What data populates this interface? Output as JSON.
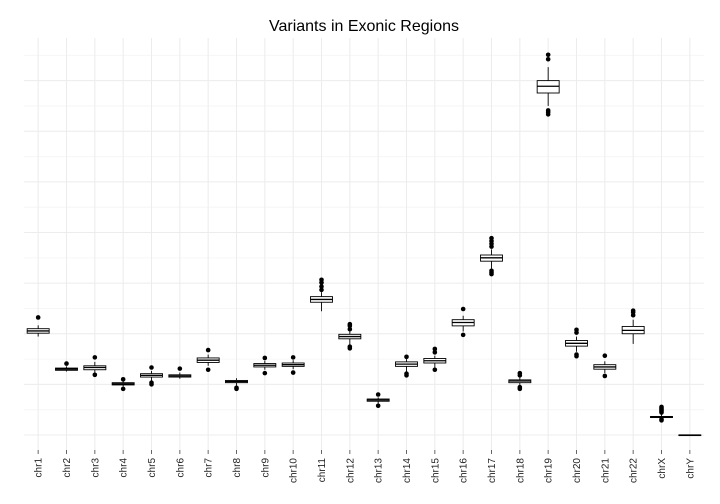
{
  "chart_data": {
    "type": "boxplot",
    "title": "Variants in Exonic Regions",
    "xlabel": "",
    "ylabel": "",
    "ylim": [
      0,
      720
    ],
    "y_tick_labels_shown": false,
    "grid": true,
    "categories": [
      "chr1",
      "chr2",
      "chr3",
      "chr4",
      "chr5",
      "chr6",
      "chr7",
      "chr8",
      "chr9",
      "chr10",
      "chr11",
      "chr12",
      "chr13",
      "chr14",
      "chr15",
      "chr16",
      "chr17",
      "chr18",
      "chr19",
      "chr20",
      "chr21",
      "chr22",
      "chrX",
      "chrY"
    ],
    "boxes": [
      {
        "category": "chr1",
        "q1": 181,
        "median": 185,
        "q3": 189,
        "lo": 175,
        "hi": 195,
        "outliers": [
          209
        ]
      },
      {
        "category": "chr2",
        "q1": 115,
        "median": 117,
        "q3": 119,
        "lo": 113,
        "hi": 122,
        "outliers": [
          127
        ]
      },
      {
        "category": "chr3",
        "q1": 116,
        "median": 120,
        "q3": 123,
        "lo": 110,
        "hi": 130,
        "outliers": [
          107,
          138
        ]
      },
      {
        "category": "chr4",
        "q1": 89,
        "median": 91,
        "q3": 93,
        "lo": 86,
        "hi": 96,
        "outliers": [
          82,
          99
        ]
      },
      {
        "category": "chr5",
        "q1": 103,
        "median": 106,
        "q3": 109,
        "lo": 97,
        "hi": 114,
        "outliers": [
          90,
          93,
          120
        ]
      },
      {
        "category": "chr6",
        "q1": 103,
        "median": 105,
        "q3": 107,
        "lo": 100,
        "hi": 111,
        "outliers": [
          118
        ]
      },
      {
        "category": "chr7",
        "q1": 129,
        "median": 133,
        "q3": 137,
        "lo": 123,
        "hi": 143,
        "outliers": [
          116,
          151
        ]
      },
      {
        "category": "chr8",
        "q1": 93,
        "median": 95,
        "q3": 97,
        "lo": 88,
        "hi": 101,
        "outliers": [
          82,
          84
        ]
      },
      {
        "category": "chr9",
        "q1": 121,
        "median": 124,
        "q3": 127,
        "lo": 116,
        "hi": 132,
        "outliers": [
          110,
          137
        ]
      },
      {
        "category": "chr10",
        "q1": 122,
        "median": 125,
        "q3": 128,
        "lo": 117,
        "hi": 133,
        "outliers": [
          111,
          138
        ]
      },
      {
        "category": "chr11",
        "q1": 236,
        "median": 241,
        "q3": 246,
        "lo": 220,
        "hi": 254,
        "outliers": [
          258,
          264,
          271,
          276
        ]
      },
      {
        "category": "chr12",
        "q1": 171,
        "median": 175,
        "q3": 179,
        "lo": 160,
        "hi": 184,
        "outliers": [
          154,
          157,
          188,
          194,
          197
        ]
      },
      {
        "category": "chr13",
        "q1": 60,
        "median": 62,
        "q3": 64,
        "lo": 56,
        "hi": 67,
        "outliers": [
          52,
          72
        ]
      },
      {
        "category": "chr14",
        "q1": 122,
        "median": 126,
        "q3": 130,
        "lo": 113,
        "hi": 135,
        "outliers": [
          106,
          109,
          139
        ]
      },
      {
        "category": "chr15",
        "q1": 128,
        "median": 132,
        "q3": 136,
        "lo": 120,
        "hi": 141,
        "outliers": [
          116,
          147,
          153
        ]
      },
      {
        "category": "chr16",
        "q1": 194,
        "median": 200,
        "q3": 205,
        "lo": 184,
        "hi": 212,
        "outliers": [
          178,
          224
        ]
      },
      {
        "category": "chr17",
        "q1": 309,
        "median": 315,
        "q3": 320,
        "lo": 296,
        "hi": 330,
        "outliers": [
          286,
          289,
          292,
          335,
          340,
          345,
          350
        ]
      },
      {
        "category": "chr18",
        "q1": 93,
        "median": 96,
        "q3": 98,
        "lo": 89,
        "hi": 102,
        "outliers": [
          82,
          85,
          106,
          110
        ]
      },
      {
        "category": "chr19",
        "q1": 608,
        "median": 620,
        "q3": 630,
        "lo": 585,
        "hi": 654,
        "outliers": [
          570,
          574,
          577,
          668,
          676
        ]
      },
      {
        "category": "chr20",
        "q1": 158,
        "median": 163,
        "q3": 168,
        "lo": 148,
        "hi": 175,
        "outliers": [
          140,
          143,
          182,
          187
        ]
      },
      {
        "category": "chr21",
        "q1": 117,
        "median": 121,
        "q3": 125,
        "lo": 110,
        "hi": 131,
        "outliers": [
          105,
          141
        ]
      },
      {
        "category": "chr22",
        "q1": 180,
        "median": 186,
        "q3": 193,
        "lo": 162,
        "hi": 205,
        "outliers": [
          213,
          218,
          221
        ]
      },
      {
        "category": "chrX",
        "q1": 31,
        "median": 32,
        "q3": 33,
        "lo": 28,
        "hi": 37,
        "outliers": [
          26,
          28,
          40,
          42,
          44,
          46,
          48,
          50
        ]
      },
      {
        "category": "chrY",
        "q1": 0,
        "median": 0,
        "q3": 0,
        "lo": 0,
        "hi": 0,
        "outliers": []
      }
    ]
  }
}
